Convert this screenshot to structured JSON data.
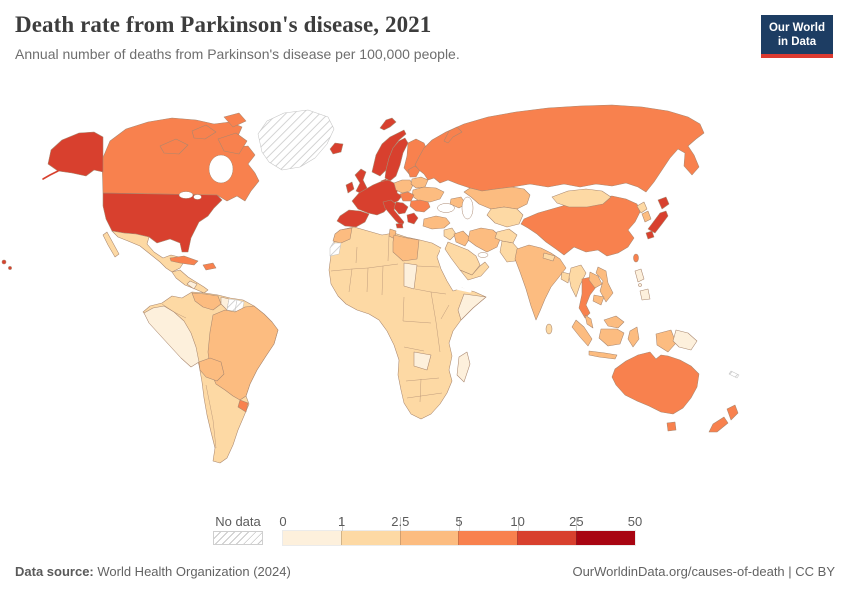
{
  "header": {
    "title": "Death rate from Parkinson's disease, 2021",
    "subtitle": "Annual number of deaths from Parkinson's disease per 100,000 people.",
    "logo_line1": "Our World",
    "logo_line2": "in Data",
    "logo_bg": "#1d3d63",
    "logo_accent": "#dc3a30"
  },
  "legend": {
    "no_data_label": "No data",
    "ticks": [
      "0",
      "1",
      "2.5",
      "5",
      "10",
      "25",
      "50"
    ]
  },
  "footer": {
    "source_label": "Data source:",
    "source_text": " World Health Organization (2024)",
    "license_text": "OurWorldinData.org/causes-of-death | CC BY"
  },
  "chart_data": {
    "type": "choropleth_map",
    "title": "Death rate from Parkinson's disease, 2021",
    "unit": "deaths per 100,000 people",
    "legend_position": "bottom",
    "bins": [
      {
        "range": "0-1",
        "color": "#fdf0dc"
      },
      {
        "range": "1-2.5",
        "color": "#fdd9a4"
      },
      {
        "range": "2.5-5",
        "color": "#fcbc80"
      },
      {
        "range": "5-10",
        "color": "#f8814e"
      },
      {
        "range": "10-25",
        "color": "#d8402e"
      },
      {
        "range": "25-50",
        "color": "#a80512"
      }
    ],
    "no_data": {
      "label": "No data",
      "style": "hatched"
    },
    "countries": {
      "greenland": "no-data",
      "canada": "5-10",
      "united-states": "10-25",
      "mexico": "1-2.5",
      "central-america": "1-2.5",
      "nicaragua": "0-1",
      "cuba": "5-10",
      "hispaniola": "5-10",
      "south-america-other": "1-2.5",
      "peru": "0-1",
      "brazil": "2.5-5",
      "venezuela": "2.5-5",
      "guyana": "0-1",
      "suriname": "no-data",
      "french-guiana": "no-data",
      "bolivia": "2.5-5",
      "uruguay": "5-10",
      "iceland": "10-25",
      "united-kingdom": "10-25",
      "ireland": "10-25",
      "norway": "10-25",
      "sweden": "10-25",
      "finland": "5-10",
      "denmark": "10-25",
      "western-europe": "10-25",
      "iberia": "10-25",
      "italy": "10-25",
      "poland": "2.5-5",
      "baltic-states": "5-10",
      "belarus": "2.5-5",
      "ukraine": "2.5-5",
      "hungary-slovakia": "5-10",
      "romania-bulgaria": "5-10",
      "balkans": "10-25",
      "greece": "10-25",
      "turkey": "2.5-5",
      "russia": "5-10",
      "kazakhstan": "2.5-5",
      "central-asia": "1-2.5",
      "caucasus": "2.5-5",
      "levant": "1-2.5",
      "iraq": "2.5-5",
      "iran": "2.5-5",
      "saudi-arabia": "1-2.5",
      "yemen-oman": "1-2.5",
      "afghanistan": "1-2.5",
      "pakistan": "1-2.5",
      "india": "2.5-5",
      "nepal": "1-2.5",
      "bangladesh": "1-2.5",
      "sri-lanka": "1-2.5",
      "africa-most": "1-2.5",
      "morocco": "2.5-5",
      "western-sahara": "no-data",
      "tunisia": "2.5-5",
      "libya": "2.5-5",
      "chad": "0-1",
      "zambia": "0-1",
      "somalia": "0-1",
      "madagascar": "0-1",
      "china": "5-10",
      "mongolia": "1-2.5",
      "north-korea": "1-2.5",
      "south-korea": "2.5-5",
      "japan": "10-25",
      "taiwan": "5-10",
      "myanmar": "1-2.5",
      "thailand": "5-10",
      "laos": "2.5-5",
      "vietnam": "2.5-5",
      "cambodia": "2.5-5",
      "malaysia": "2.5-5",
      "philippines": "0-1",
      "indonesia": "2.5-5",
      "papua-new-guinea": "0-1",
      "australia": "5-10",
      "new-zealand": "5-10",
      "new-caledonia": "no-data"
    }
  }
}
